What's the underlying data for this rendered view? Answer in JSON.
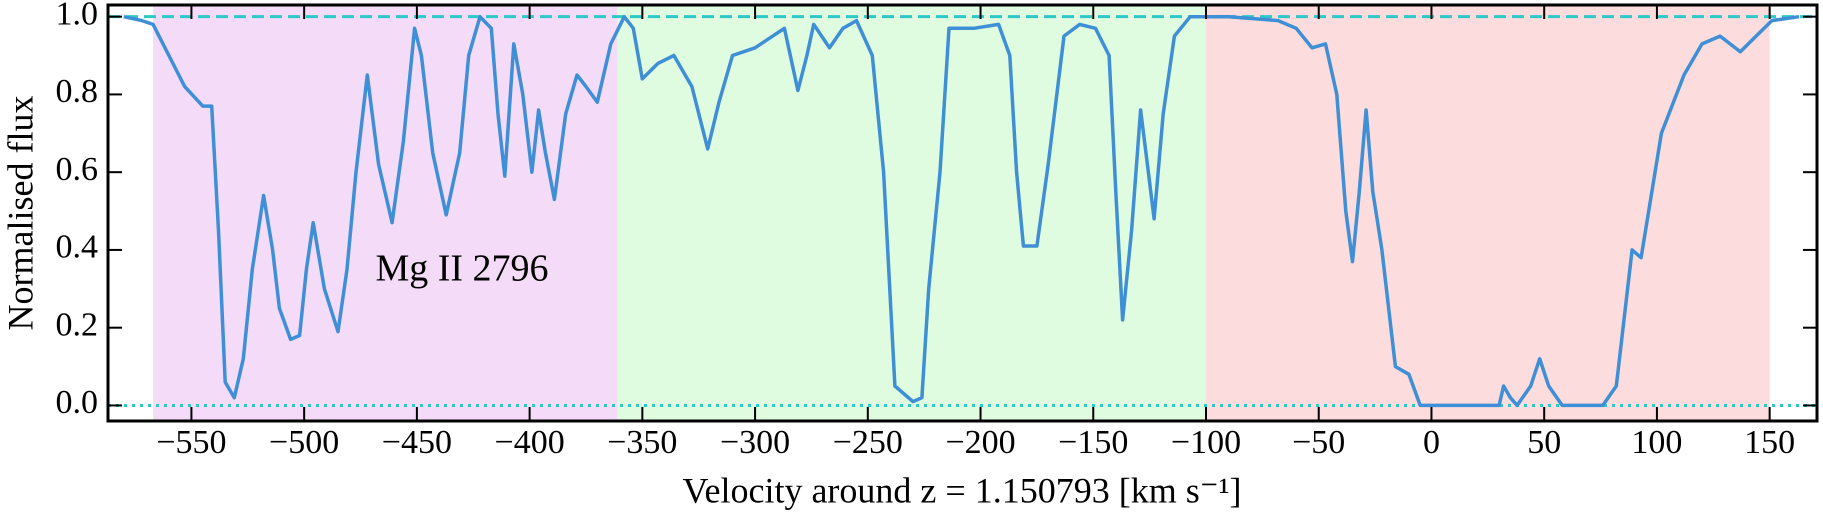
{
  "chart_data": {
    "type": "line",
    "xlabel": "Velocity around z = 1.150793 [km s⁻¹]",
    "ylabel": "Normalised flux",
    "annotation": "Mg II 2796",
    "color": "#3f8fd6",
    "xlim": [
      -587,
      171
    ],
    "ylim": [
      -0.04,
      1.03
    ],
    "xticks": [
      {
        "value": -550,
        "label": "−550"
      },
      {
        "value": -500,
        "label": "−500"
      },
      {
        "value": -450,
        "label": "−450"
      },
      {
        "value": -400,
        "label": "−400"
      },
      {
        "value": -350,
        "label": "−350"
      },
      {
        "value": -300,
        "label": "−300"
      },
      {
        "value": -250,
        "label": "−250"
      },
      {
        "value": -200,
        "label": "−200"
      },
      {
        "value": -150,
        "label": "−150"
      },
      {
        "value": -100,
        "label": "−100"
      },
      {
        "value": -50,
        "label": "−50"
      },
      0,
      50,
      100,
      150
    ],
    "yticks": [
      {
        "value": 0,
        "label": "0.0"
      },
      {
        "value": 0.2,
        "label": "0.2"
      },
      {
        "value": 0.4,
        "label": "0.4"
      },
      {
        "value": 0.6,
        "label": "0.6"
      },
      {
        "value": 0.8,
        "label": "0.8"
      },
      {
        "value": 1,
        "label": "1.0"
      }
    ],
    "regions": [
      {
        "color": "#f4dcf9",
        "x": [
          -567,
          -361
        ]
      },
      {
        "color": "#e0fce0",
        "x": [
          -361,
          -100
        ]
      },
      {
        "color": "#fcdcdc",
        "x": [
          -100,
          150
        ]
      }
    ],
    "hlines": [
      {
        "value": 1,
        "style": "dashed",
        "color": "#2ec8c8"
      },
      {
        "value": 0,
        "style": "dotted",
        "color": "#2ec8c8"
      }
    ],
    "x": [
      -580,
      -572,
      -567,
      -560,
      -553,
      -545,
      -541,
      -538,
      -535,
      -531,
      -527,
      -523,
      -518,
      -514,
      -511,
      -506,
      -502,
      -499,
      -496,
      -491,
      -485,
      -481,
      -477,
      -472,
      -467,
      -461,
      -456,
      -451,
      -448,
      -443,
      -437,
      -431,
      -427,
      -422,
      -417,
      -414,
      -411,
      -407,
      -403,
      -399,
      -396,
      -393,
      -389,
      -384,
      -379,
      -375,
      -370,
      -364,
      -358,
      -354,
      -350,
      -343,
      -336,
      -328,
      -321,
      -316,
      -310,
      -300,
      -287,
      -281,
      -277,
      -274,
      -267,
      -261,
      -255,
      -248,
      -243,
      -238,
      -230,
      -226,
      -223,
      -218,
      -214,
      -203,
      -192,
      -187,
      -184,
      -181,
      -175,
      -170,
      -163,
      -156,
      -149,
      -143,
      -140,
      -137,
      -133,
      -129,
      -126,
      -123,
      -119,
      -114,
      -107,
      -90,
      -68,
      -60,
      -53,
      -47,
      -42,
      -38,
      -35,
      -32,
      -29,
      -26,
      -22,
      -16,
      -10,
      -5,
      10,
      30,
      32,
      35,
      38,
      44,
      48,
      52,
      58,
      76,
      82,
      89,
      93,
      102,
      112,
      120,
      128,
      137,
      144,
      151,
      163
    ],
    "values": [
      1.0,
      0.99,
      0.98,
      0.9,
      0.82,
      0.77,
      0.77,
      0.45,
      0.06,
      0.02,
      0.12,
      0.35,
      0.54,
      0.4,
      0.25,
      0.17,
      0.18,
      0.35,
      0.47,
      0.3,
      0.19,
      0.35,
      0.6,
      0.85,
      0.62,
      0.47,
      0.68,
      0.97,
      0.9,
      0.65,
      0.49,
      0.65,
      0.9,
      1.0,
      0.97,
      0.75,
      0.59,
      0.93,
      0.8,
      0.6,
      0.76,
      0.65,
      0.53,
      0.75,
      0.85,
      0.82,
      0.78,
      0.93,
      1.0,
      0.97,
      0.84,
      0.88,
      0.9,
      0.82,
      0.66,
      0.78,
      0.9,
      0.92,
      0.97,
      0.81,
      0.9,
      0.98,
      0.92,
      0.97,
      0.99,
      0.9,
      0.6,
      0.05,
      0.01,
      0.02,
      0.3,
      0.6,
      0.97,
      0.97,
      0.98,
      0.9,
      0.6,
      0.41,
      0.41,
      0.62,
      0.95,
      0.98,
      0.97,
      0.9,
      0.55,
      0.22,
      0.45,
      0.76,
      0.62,
      0.48,
      0.75,
      0.95,
      1.0,
      1.0,
      0.99,
      0.97,
      0.92,
      0.93,
      0.8,
      0.5,
      0.37,
      0.55,
      0.76,
      0.55,
      0.4,
      0.1,
      0.08,
      0.0,
      0.0,
      0.0,
      0.05,
      0.02,
      0.0,
      0.05,
      0.12,
      0.05,
      0.0,
      0.0,
      0.05,
      0.4,
      0.38,
      0.7,
      0.85,
      0.93,
      0.95,
      0.91,
      0.95,
      0.99,
      1.0
    ]
  }
}
